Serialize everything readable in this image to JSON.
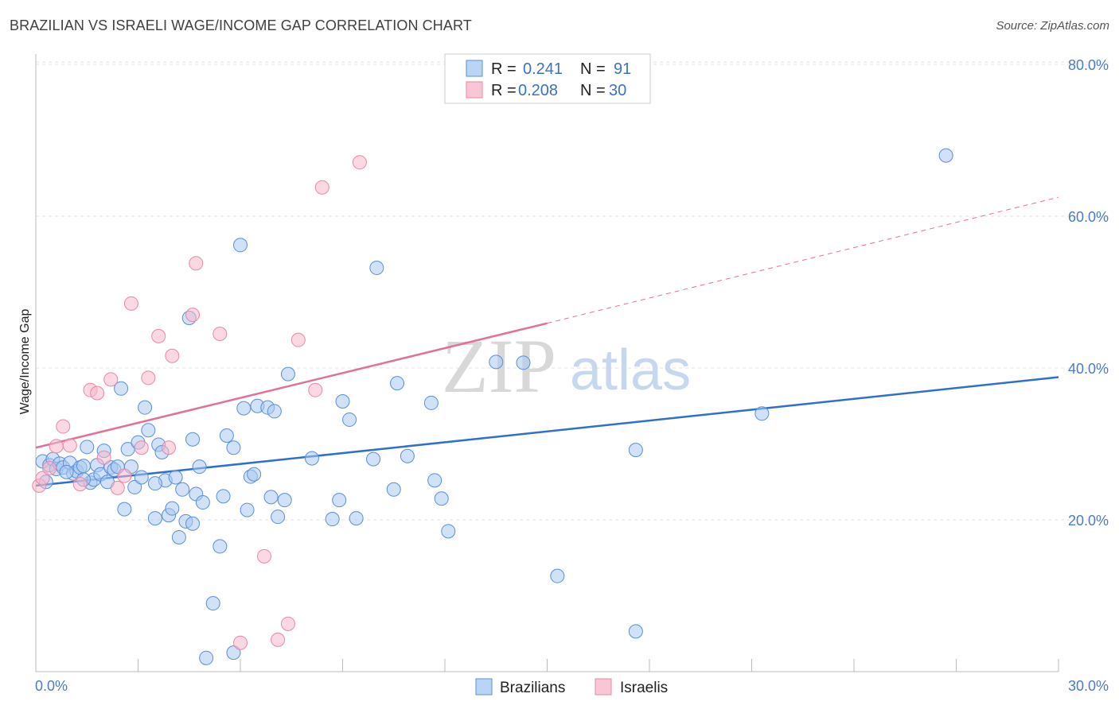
{
  "header": {
    "title": "BRAZILIAN VS ISRAELI WAGE/INCOME GAP CORRELATION CHART",
    "source": "Source: ZipAtlas.com"
  },
  "watermark": {
    "zip": "ZIP",
    "atlas": "atlas"
  },
  "legend_top": [
    {
      "r_label": "R =",
      "r_value": "0.241",
      "n_label": "N =",
      "n_value": "91",
      "color": "#a9c9f2"
    },
    {
      "r_label": "R =",
      "r_value": "0.208",
      "n_label": "N =",
      "n_value": "30",
      "color": "#f7b8cb"
    }
  ],
  "legend_bottom": [
    {
      "label": "Brazilians",
      "color": "#a9c9f2"
    },
    {
      "label": "Israelis",
      "color": "#f7b8cb"
    }
  ],
  "chart_data": {
    "type": "scatter",
    "title": "BRAZILIAN VS ISRAELI WAGE/INCOME GAP CORRELATION CHART",
    "ylabel": "Wage/Income Gap",
    "xlabel": "",
    "xlim": [
      0,
      30
    ],
    "ylim": [
      0,
      82
    ],
    "x_tick_labels": [
      "0.0%",
      "30.0%"
    ],
    "y_ticks": [
      20,
      40,
      60,
      80
    ],
    "y_tick_labels": [
      "20.0%",
      "40.0%",
      "60.0%",
      "80.0%"
    ],
    "grid": true,
    "legend_position": "top-center",
    "series": [
      {
        "name": "Brazilians",
        "color": "#a9c9f2",
        "stroke": "#5b8fd6",
        "line_color": "#2f6fce",
        "trend": {
          "x": [
            0,
            30
          ],
          "y": [
            24.5,
            38.8
          ]
        },
        "points": [
          [
            0.2,
            27.7
          ],
          [
            0.4,
            27.2
          ],
          [
            0.5,
            28.0
          ],
          [
            0.6,
            26.7
          ],
          [
            0.7,
            27.4
          ],
          [
            0.8,
            26.9
          ],
          [
            1.0,
            27.5
          ],
          [
            1.1,
            26.1
          ],
          [
            1.2,
            26.4
          ],
          [
            1.3,
            26.9
          ],
          [
            1.4,
            27.1
          ],
          [
            1.5,
            29.6
          ],
          [
            1.6,
            24.9
          ],
          [
            1.7,
            25.3
          ],
          [
            1.8,
            27.2
          ],
          [
            1.9,
            26.0
          ],
          [
            2.0,
            29.1
          ],
          [
            2.1,
            25.0
          ],
          [
            2.2,
            26.9
          ],
          [
            2.3,
            26.6
          ],
          [
            2.5,
            37.3
          ],
          [
            2.6,
            21.4
          ],
          [
            2.7,
            29.3
          ],
          [
            2.8,
            27.0
          ],
          [
            2.9,
            24.3
          ],
          [
            3.0,
            30.2
          ],
          [
            3.1,
            25.6
          ],
          [
            3.2,
            34.8
          ],
          [
            3.3,
            31.8
          ],
          [
            3.5,
            20.2
          ],
          [
            3.6,
            29.9
          ],
          [
            3.7,
            28.9
          ],
          [
            3.8,
            25.2
          ],
          [
            3.9,
            20.6
          ],
          [
            4.0,
            21.5
          ],
          [
            4.1,
            25.6
          ],
          [
            4.2,
            17.7
          ],
          [
            4.3,
            24.0
          ],
          [
            4.4,
            19.8
          ],
          [
            4.5,
            46.6
          ],
          [
            4.6,
            19.5
          ],
          [
            4.6,
            30.6
          ],
          [
            4.7,
            23.4
          ],
          [
            4.8,
            27.0
          ],
          [
            4.9,
            22.3
          ],
          [
            5.2,
            9.0
          ],
          [
            5.4,
            16.5
          ],
          [
            5.5,
            23.1
          ],
          [
            5.6,
            31.1
          ],
          [
            5.8,
            29.5
          ],
          [
            6.0,
            56.2
          ],
          [
            6.1,
            34.7
          ],
          [
            6.2,
            21.3
          ],
          [
            6.3,
            25.7
          ],
          [
            6.4,
            26.0
          ],
          [
            6.5,
            35.0
          ],
          [
            6.8,
            34.8
          ],
          [
            6.9,
            23.0
          ],
          [
            7.0,
            34.3
          ],
          [
            7.1,
            20.4
          ],
          [
            7.3,
            22.6
          ],
          [
            7.4,
            39.2
          ],
          [
            8.1,
            28.1
          ],
          [
            8.7,
            20.1
          ],
          [
            8.9,
            22.6
          ],
          [
            9.0,
            35.6
          ],
          [
            9.2,
            33.2
          ],
          [
            9.4,
            20.2
          ],
          [
            9.9,
            28.0
          ],
          [
            10.0,
            53.2
          ],
          [
            10.5,
            24.0
          ],
          [
            10.6,
            38.0
          ],
          [
            10.9,
            28.4
          ],
          [
            11.6,
            35.4
          ],
          [
            11.7,
            25.2
          ],
          [
            11.9,
            22.8
          ],
          [
            12.1,
            18.5
          ],
          [
            13.5,
            40.8
          ],
          [
            14.3,
            40.7
          ],
          [
            15.3,
            12.6
          ],
          [
            17.6,
            29.2
          ],
          [
            17.6,
            5.3
          ],
          [
            21.3,
            34.0
          ],
          [
            26.7,
            68.0
          ],
          [
            5.0,
            1.8
          ],
          [
            5.8,
            2.5
          ],
          [
            0.9,
            26.3
          ],
          [
            1.4,
            25.3
          ],
          [
            2.4,
            27.0
          ],
          [
            3.5,
            24.8
          ],
          [
            0.3,
            25.0
          ]
        ]
      },
      {
        "name": "Israelis",
        "color": "#f7b8cb",
        "stroke": "#e589a8",
        "line_color": "#e2709a",
        "trend": {
          "x": [
            0,
            15
          ],
          "y": [
            29.5,
            45.9
          ]
        },
        "trend_extension": {
          "x": [
            15,
            30
          ],
          "y": [
            45.9,
            62.5
          ]
        },
        "points": [
          [
            0.1,
            24.5
          ],
          [
            0.2,
            25.5
          ],
          [
            0.4,
            26.8
          ],
          [
            0.6,
            29.7
          ],
          [
            0.8,
            32.3
          ],
          [
            1.0,
            29.8
          ],
          [
            1.3,
            24.7
          ],
          [
            1.6,
            37.1
          ],
          [
            1.8,
            36.7
          ],
          [
            2.0,
            28.2
          ],
          [
            2.2,
            38.5
          ],
          [
            2.4,
            24.2
          ],
          [
            2.6,
            25.8
          ],
          [
            2.8,
            48.5
          ],
          [
            3.1,
            29.5
          ],
          [
            3.3,
            38.7
          ],
          [
            3.6,
            44.2
          ],
          [
            3.9,
            29.5
          ],
          [
            4.0,
            41.6
          ],
          [
            4.6,
            47.0
          ],
          [
            4.7,
            53.8
          ],
          [
            5.4,
            44.5
          ],
          [
            6.0,
            3.8
          ],
          [
            6.7,
            15.2
          ],
          [
            7.1,
            4.2
          ],
          [
            7.4,
            6.3
          ],
          [
            7.7,
            43.7
          ],
          [
            8.2,
            37.1
          ],
          [
            8.4,
            63.8
          ],
          [
            9.5,
            67.1
          ]
        ]
      }
    ]
  }
}
